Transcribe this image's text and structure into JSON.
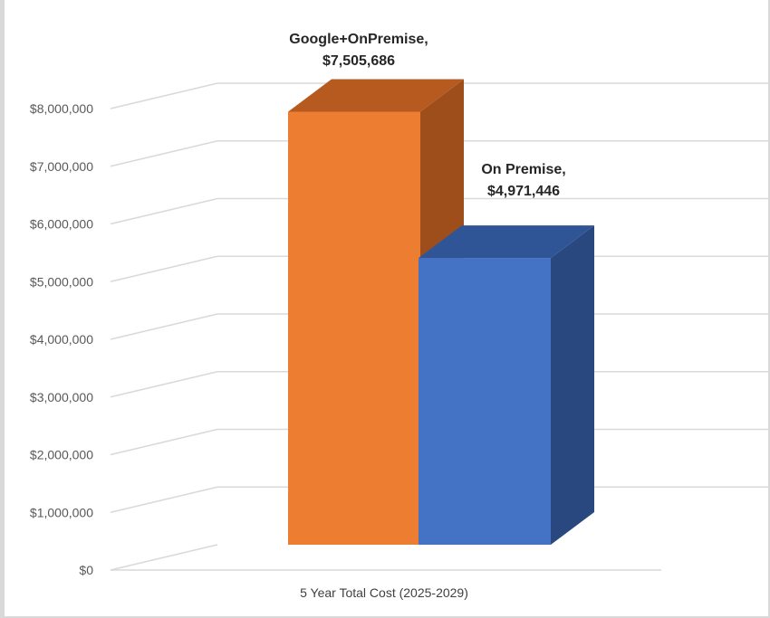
{
  "chart_data": {
    "type": "bar",
    "title": "",
    "xlabel": "",
    "ylabel": "",
    "categories": [
      "5 Year Total Cost (2025-2029)"
    ],
    "series": [
      {
        "name": "Google+OnPremise",
        "values": [
          7505686
        ],
        "label_line1": "Google+OnPremise,",
        "label_line2": "$7,505,686",
        "color": "#ED7D31",
        "top_color": "#B65A1F",
        "side_color": "#9E4E1A"
      },
      {
        "name": "On Premise",
        "values": [
          4971446
        ],
        "label_line1": "On Premise,",
        "label_line2": "$4,971,446",
        "color": "#4472C4",
        "top_color": "#2F5597",
        "side_color": "#29487F"
      }
    ],
    "ylim": [
      0,
      8000000
    ],
    "yticks": [
      0,
      1000000,
      2000000,
      3000000,
      4000000,
      5000000,
      6000000,
      7000000,
      8000000
    ],
    "ytick_labels": [
      "$0",
      "$1,000,000",
      "$2,000,000",
      "$3,000,000",
      "$4,000,000",
      "$5,000,000",
      "$6,000,000",
      "$7,000,000",
      "$8,000,000"
    ],
    "grid": true,
    "style": "3d-clustered-column",
    "colors": {
      "background": "#ffffff",
      "frame": "#d9d9d9",
      "grid": "#d9d9d9"
    }
  }
}
